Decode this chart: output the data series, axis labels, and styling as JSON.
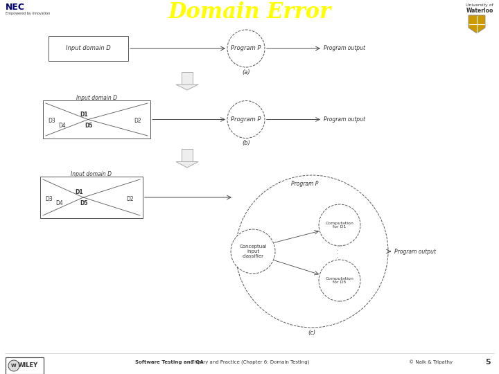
{
  "title": "Domain Error",
  "title_color": "#ffff00",
  "title_fontsize": 22,
  "bg_color": "#ffffff",
  "footer_text": "Software Testing and QA  Theory and Practice (Chapter 6: Domain Testing)",
  "footer_right": "© Naik & Tripathy",
  "footer_page": "5",
  "diagram_a_label": "(a)",
  "diagram_b_label": "(b)",
  "diagram_c_label": "(c)",
  "input_domain_label": "Input domain D",
  "program_p_label": "Program P",
  "program_output_label": "Program output",
  "d1_label": "D1",
  "d2_label": "D2",
  "d3_label": "D3",
  "d4_label": "D4",
  "d5_label": "D5",
  "conceptual_label": "Conceptual\ninput\nclassifier",
  "computation_d1_label": "Computation\nfor D1",
  "computation_d5_label": "Computation\nfor D5",
  "program_p_large_label": "Program P",
  "line_color": "#555555",
  "arrow_color": "#444444",
  "text_color": "#333333",
  "nec_color": "#000077",
  "waterloo_color": "#333333"
}
